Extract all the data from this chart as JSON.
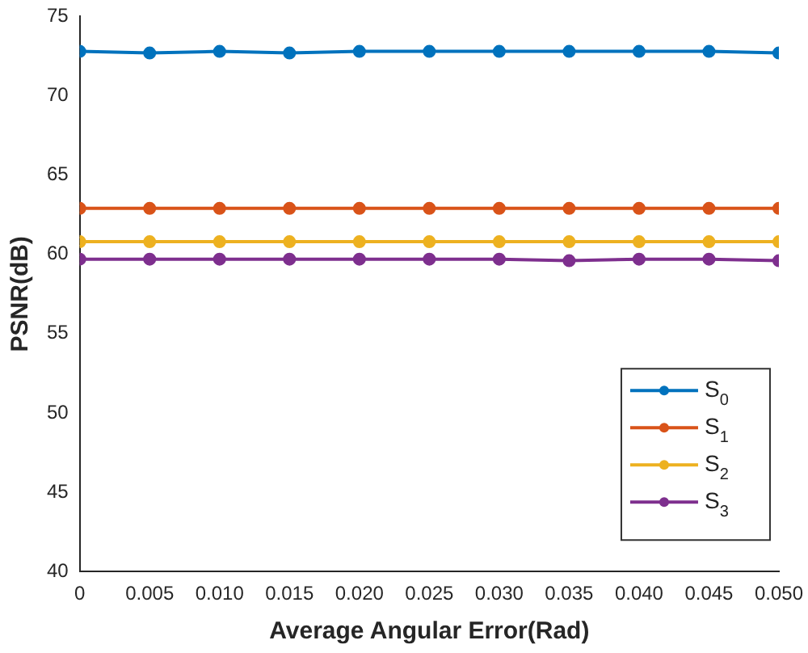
{
  "chart_data": {
    "type": "line",
    "xlabel": "Average Angular Error(Rad)",
    "ylabel": "PSNR(dB)",
    "x": [
      0,
      0.005,
      0.01,
      0.015,
      0.02,
      0.025,
      0.03,
      0.035,
      0.04,
      0.045,
      0.05
    ],
    "series": [
      {
        "name": "S$_{0}$",
        "color": "#0072bd",
        "values": [
          72.8,
          72.7,
          72.8,
          72.7,
          72.8,
          72.8,
          72.8,
          72.8,
          72.8,
          72.8,
          72.7
        ]
      },
      {
        "name": "S$_{1}$",
        "color": "#d95319",
        "values": [
          62.9,
          62.9,
          62.9,
          62.9,
          62.9,
          62.9,
          62.9,
          62.9,
          62.9,
          62.9,
          62.9
        ]
      },
      {
        "name": "S$_{2}$",
        "color": "#edb120",
        "values": [
          60.8,
          60.8,
          60.8,
          60.8,
          60.8,
          60.8,
          60.8,
          60.8,
          60.8,
          60.8,
          60.8
        ]
      },
      {
        "name": "S$_{3}$",
        "color": "#7e2f8e",
        "values": [
          59.7,
          59.7,
          59.7,
          59.7,
          59.7,
          59.7,
          59.7,
          59.6,
          59.7,
          59.7,
          59.6
        ]
      }
    ],
    "xlim": [
      0,
      0.05
    ],
    "xticks": [
      {
        "value": 0,
        "label": "0"
      },
      {
        "value": 0.005,
        "label": "0.005"
      },
      {
        "value": 0.01,
        "label": "0.010"
      },
      {
        "value": 0.015,
        "label": "0.015"
      },
      {
        "value": 0.02,
        "label": "0.020"
      },
      {
        "value": 0.025,
        "label": "0.025"
      },
      {
        "value": 0.03,
        "label": "0.030"
      },
      {
        "value": 0.035,
        "label": "0.035"
      },
      {
        "value": 0.04,
        "label": "0.040"
      },
      {
        "value": 0.045,
        "label": "0.045"
      },
      {
        "value": 0.05,
        "label": "0.050"
      }
    ],
    "ylim": [
      40,
      75
    ],
    "yticks": [
      40,
      45,
      50,
      55,
      60,
      65,
      70,
      75
    ],
    "grid": false,
    "legend": "bottom right",
    "marker": "circle",
    "line_style": "solid"
  }
}
